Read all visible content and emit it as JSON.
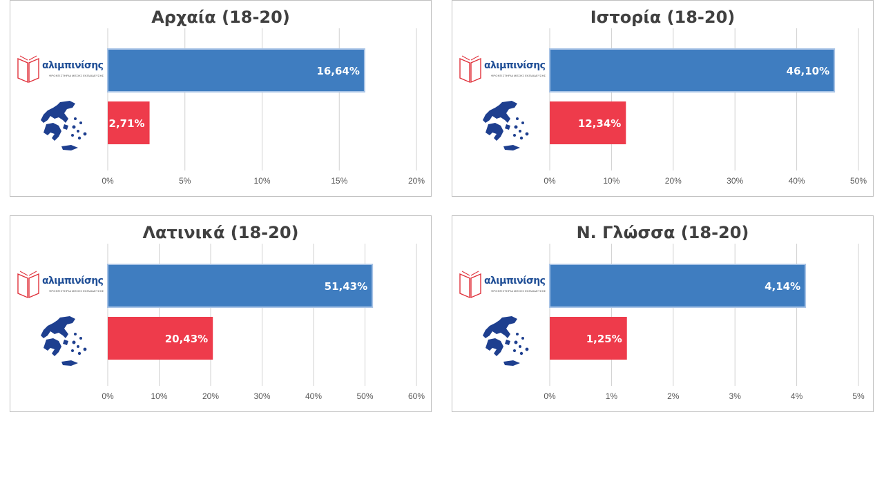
{
  "brand": {
    "name": "αλιμπινίσης",
    "tagline": "ΦΡΟΝΤΙΣΤΗΡΙΑ ΜΕΣΗΣ ΕΚΠΑΙΔΕΥΣΗΣ"
  },
  "colors": {
    "brand_bar": "#3f7dc0",
    "national_bar": "#ee3b4b",
    "grid": "#d0d0d0",
    "map": "#1e3f8f"
  },
  "chart_data": [
    {
      "type": "bar",
      "orientation": "horizontal",
      "title": "Αρχαία (18-20)",
      "categories": [
        "αλιμπινίσης",
        "Greece"
      ],
      "values": [
        16.64,
        2.71
      ],
      "value_labels": [
        "16,64%",
        "2,71%"
      ],
      "xlim": [
        0,
        20
      ],
      "xticks": [
        "0%",
        "5%",
        "10%",
        "15%",
        "20%"
      ],
      "xtick_values": [
        0,
        5,
        10,
        15,
        20
      ],
      "grid": true
    },
    {
      "type": "bar",
      "orientation": "horizontal",
      "title": "Ιστορία (18-20)",
      "categories": [
        "αλιμπινίσης",
        "Greece"
      ],
      "values": [
        46.1,
        12.34
      ],
      "value_labels": [
        "46,10%",
        "12,34%"
      ],
      "xlim": [
        0,
        50
      ],
      "xticks": [
        "0%",
        "10%",
        "20%",
        "30%",
        "40%",
        "50%"
      ],
      "xtick_values": [
        0,
        10,
        20,
        30,
        40,
        50
      ],
      "grid": true
    },
    {
      "type": "bar",
      "orientation": "horizontal",
      "title": "Λατινικά (18-20)",
      "categories": [
        "αλιμπινίσης",
        "Greece"
      ],
      "values": [
        51.43,
        20.43
      ],
      "value_labels": [
        "51,43%",
        "20,43%"
      ],
      "xlim": [
        0,
        60
      ],
      "xticks": [
        "0%",
        "10%",
        "20%",
        "30%",
        "40%",
        "50%",
        "60%"
      ],
      "xtick_values": [
        0,
        10,
        20,
        30,
        40,
        50,
        60
      ],
      "grid": true
    },
    {
      "type": "bar",
      "orientation": "horizontal",
      "title": "Ν. Γλώσσα (18-20)",
      "categories": [
        "αλιμπινίσης",
        "Greece"
      ],
      "values": [
        4.14,
        1.25
      ],
      "value_labels": [
        "4,14%",
        "1,25%"
      ],
      "xlim": [
        0,
        5
      ],
      "xticks": [
        "0%",
        "1%",
        "2%",
        "3%",
        "4%",
        "5%"
      ],
      "xtick_values": [
        0,
        1,
        2,
        3,
        4,
        5
      ],
      "grid": true
    }
  ]
}
